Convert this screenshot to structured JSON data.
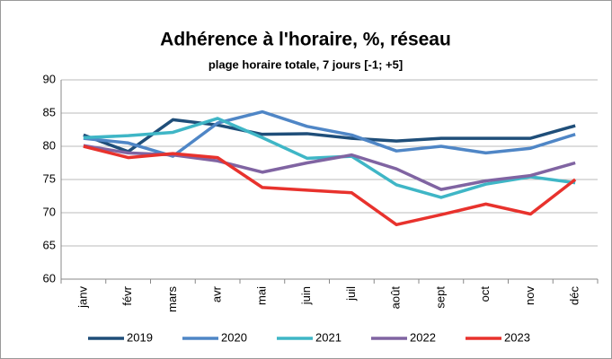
{
  "chart_data": {
    "type": "line",
    "title": "Adhérence à l'horaire, %, réseau",
    "subtitle": "plage horaire totale, 7 jours [-1; +5]",
    "categories": [
      "janv",
      "févr",
      "mars",
      "avr",
      "mai",
      "juin",
      "juil",
      "août",
      "sept",
      "oct",
      "nov",
      "déc"
    ],
    "series": [
      {
        "name": "2019",
        "color": "#1f4e79",
        "values": [
          81.7,
          79.2,
          84.0,
          83.2,
          81.8,
          81.9,
          81.2,
          80.8,
          81.2,
          81.2,
          81.2,
          83.1
        ]
      },
      {
        "name": "2020",
        "color": "#4f86c6",
        "values": [
          81.2,
          80.5,
          78.5,
          83.5,
          85.2,
          83.0,
          81.7,
          79.3,
          80.0,
          79.0,
          79.7,
          81.8
        ]
      },
      {
        "name": "2021",
        "color": "#3fb6c6",
        "values": [
          81.3,
          81.6,
          82.1,
          84.2,
          81.3,
          78.2,
          78.5,
          74.2,
          72.3,
          74.3,
          75.4,
          74.5
        ]
      },
      {
        "name": "2022",
        "color": "#8064a2",
        "values": [
          80.1,
          79.0,
          78.7,
          77.8,
          76.1,
          77.5,
          78.7,
          76.6,
          73.5,
          74.8,
          75.6,
          77.5
        ]
      },
      {
        "name": "2023",
        "color": "#e8322d",
        "values": [
          80.0,
          78.3,
          78.9,
          78.3,
          73.8,
          73.4,
          73.0,
          68.2,
          69.7,
          71.3,
          69.8,
          75.0
        ]
      }
    ],
    "ylim": [
      60,
      90
    ],
    "yticks": [
      60,
      65,
      70,
      75,
      80,
      85,
      90
    ],
    "grid": true
  }
}
